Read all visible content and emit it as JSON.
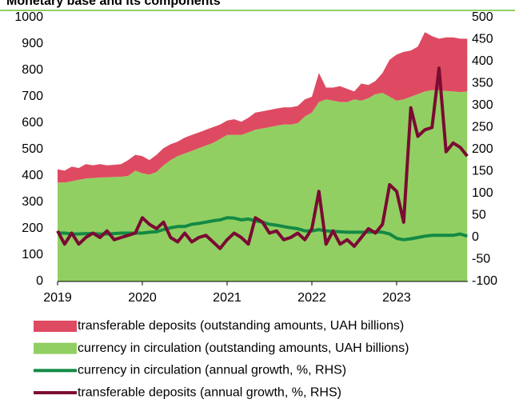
{
  "chart_data": {
    "type": "area",
    "title": "Monetary base and its components",
    "x": [
      2019,
      2019.083,
      2019.167,
      2019.25,
      2019.333,
      2019.417,
      2019.5,
      2019.583,
      2019.667,
      2019.75,
      2019.833,
      2019.917,
      2020,
      2020.083,
      2020.167,
      2020.25,
      2020.333,
      2020.417,
      2020.5,
      2020.583,
      2020.667,
      2020.75,
      2020.833,
      2020.917,
      2021,
      2021.083,
      2021.167,
      2021.25,
      2021.333,
      2021.417,
      2021.5,
      2021.583,
      2021.667,
      2021.75,
      2021.833,
      2021.917,
      2022,
      2022.083,
      2022.167,
      2022.25,
      2022.333,
      2022.417,
      2022.5,
      2022.583,
      2022.667,
      2022.75,
      2022.833,
      2022.917,
      2023,
      2023.083,
      2023.167,
      2023.25,
      2023.333,
      2023.417,
      2023.5,
      2023.583,
      2023.667,
      2023.75,
      2023.833
    ],
    "xlim": [
      2019,
      2023.84
    ],
    "xticks": [
      2019,
      2020,
      2021,
      2022,
      2023
    ],
    "ylim": [
      0,
      1000
    ],
    "yticks": [
      0,
      100,
      200,
      300,
      400,
      500,
      600,
      700,
      800,
      900,
      1000
    ],
    "y2lim": [
      -100,
      500
    ],
    "y2ticks": [
      -100,
      -50,
      0,
      50,
      100,
      150,
      200,
      250,
      300,
      350,
      400,
      450,
      500
    ],
    "series": [
      {
        "name": "transferable deposits (outstanding amounts, UAH billions)",
        "color": "#de4a62",
        "type": "area",
        "stack": true,
        "values": [
          50,
          45,
          55,
          45,
          55,
          48,
          51,
          45,
          46,
          48,
          60,
          60,
          65,
          55,
          65,
          65,
          60,
          55,
          60,
          60,
          60,
          60,
          60,
          55,
          55,
          60,
          50,
          55,
          65,
          65,
          65,
          65,
          65,
          65,
          65,
          65,
          60,
          110,
          45,
          50,
          60,
          50,
          30,
          65,
          50,
          50,
          75,
          140,
          175,
          180,
          175,
          180,
          225,
          205,
          195,
          203,
          205,
          202,
          200
        ]
      },
      {
        "name": "currency in circulation (outstanding amounts, UAH billions)",
        "color": "#92cf62",
        "type": "area",
        "stack": true,
        "values": [
          375,
          375,
          380,
          385,
          390,
          392,
          394,
          395,
          396,
          397,
          400,
          420,
          410,
          405,
          415,
          440,
          460,
          475,
          485,
          495,
          505,
          515,
          525,
          540,
          555,
          555,
          555,
          565,
          575,
          580,
          585,
          590,
          595,
          595,
          600,
          625,
          640,
          680,
          690,
          685,
          680,
          680,
          690,
          685,
          695,
          710,
          715,
          700,
          685,
          690,
          700,
          710,
          720,
          725,
          725,
          722,
          720,
          718,
          720
        ]
      },
      {
        "name": "currency in circulation (annual growth, %, RHS)",
        "color": "#138a44",
        "type": "line",
        "axis": "y2",
        "values": [
          10,
          10,
          8,
          8,
          9,
          9,
          8,
          8,
          9,
          10,
          10,
          10,
          10,
          12,
          13,
          18,
          22,
          25,
          25,
          30,
          32,
          35,
          38,
          40,
          45,
          44,
          40,
          42,
          38,
          35,
          30,
          28,
          25,
          22,
          20,
          15,
          15,
          18,
          15,
          14,
          13,
          12,
          12,
          12,
          12,
          13,
          12,
          8,
          -2,
          -5,
          -3,
          0,
          3,
          5,
          5,
          5,
          5,
          8,
          3
        ]
      },
      {
        "name": "transferable deposits (annual growth, %, RHS)",
        "color": "#7a0b33",
        "type": "line",
        "axis": "y2",
        "values": [
          15,
          -15,
          10,
          -15,
          0,
          10,
          0,
          15,
          -5,
          0,
          5,
          10,
          45,
          30,
          20,
          35,
          0,
          -10,
          10,
          -10,
          0,
          5,
          -10,
          -25,
          -5,
          10,
          0,
          -15,
          45,
          35,
          10,
          15,
          -5,
          0,
          10,
          -5,
          20,
          105,
          -15,
          15,
          -15,
          -5,
          -20,
          0,
          20,
          10,
          30,
          120,
          105,
          35,
          295,
          230,
          245,
          250,
          385,
          195,
          215,
          205,
          185
        ]
      }
    ]
  }
}
